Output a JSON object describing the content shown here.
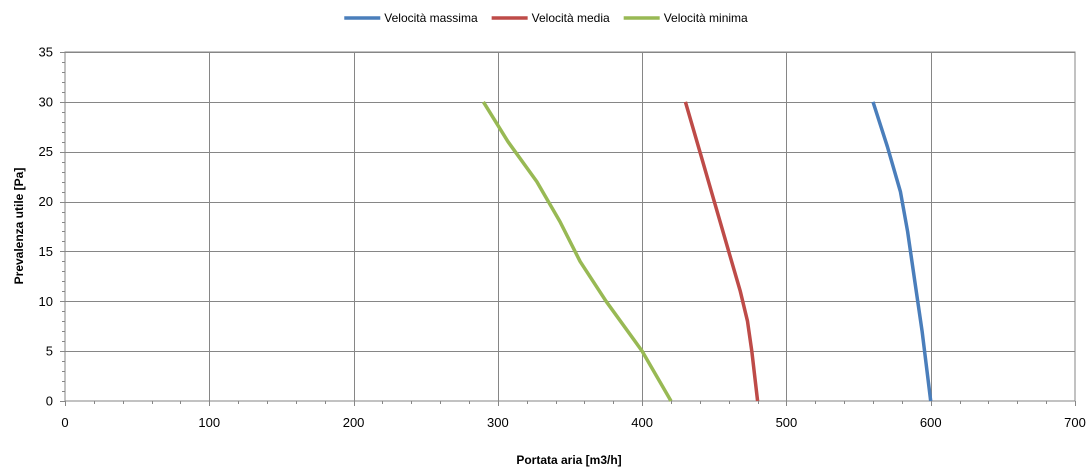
{
  "chart_data": {
    "type": "line",
    "title": "",
    "xlabel": "Portata aria [m3/h]",
    "ylabel": "Prevalenza utile [Pa]",
    "xlim": [
      0,
      700
    ],
    "ylim": [
      0,
      35
    ],
    "xticks": [
      0,
      100,
      200,
      300,
      400,
      500,
      600,
      700
    ],
    "yticks": [
      0,
      5,
      10,
      15,
      20,
      25,
      30,
      35
    ],
    "grid": true,
    "legend_position": "top",
    "series": [
      {
        "name": "Velocità massima",
        "color": "#4a7ebb",
        "points": [
          [
            560,
            30
          ],
          [
            570,
            25.5
          ],
          [
            579,
            21
          ],
          [
            584,
            17
          ],
          [
            589,
            12
          ],
          [
            594,
            7
          ],
          [
            600,
            0
          ]
        ]
      },
      {
        "name": "Velocità media",
        "color": "#be4b48",
        "points": [
          [
            430,
            30
          ],
          [
            440,
            25
          ],
          [
            450,
            20
          ],
          [
            460,
            15
          ],
          [
            468,
            11
          ],
          [
            473,
            8
          ],
          [
            476,
            5
          ],
          [
            480,
            0
          ]
        ]
      },
      {
        "name": "Velocità minima",
        "color": "#98b954",
        "points": [
          [
            290,
            30
          ],
          [
            307,
            26
          ],
          [
            327,
            22
          ],
          [
            343,
            18
          ],
          [
            357,
            14
          ],
          [
            375,
            10
          ],
          [
            400,
            5
          ],
          [
            420,
            0
          ]
        ]
      }
    ]
  }
}
